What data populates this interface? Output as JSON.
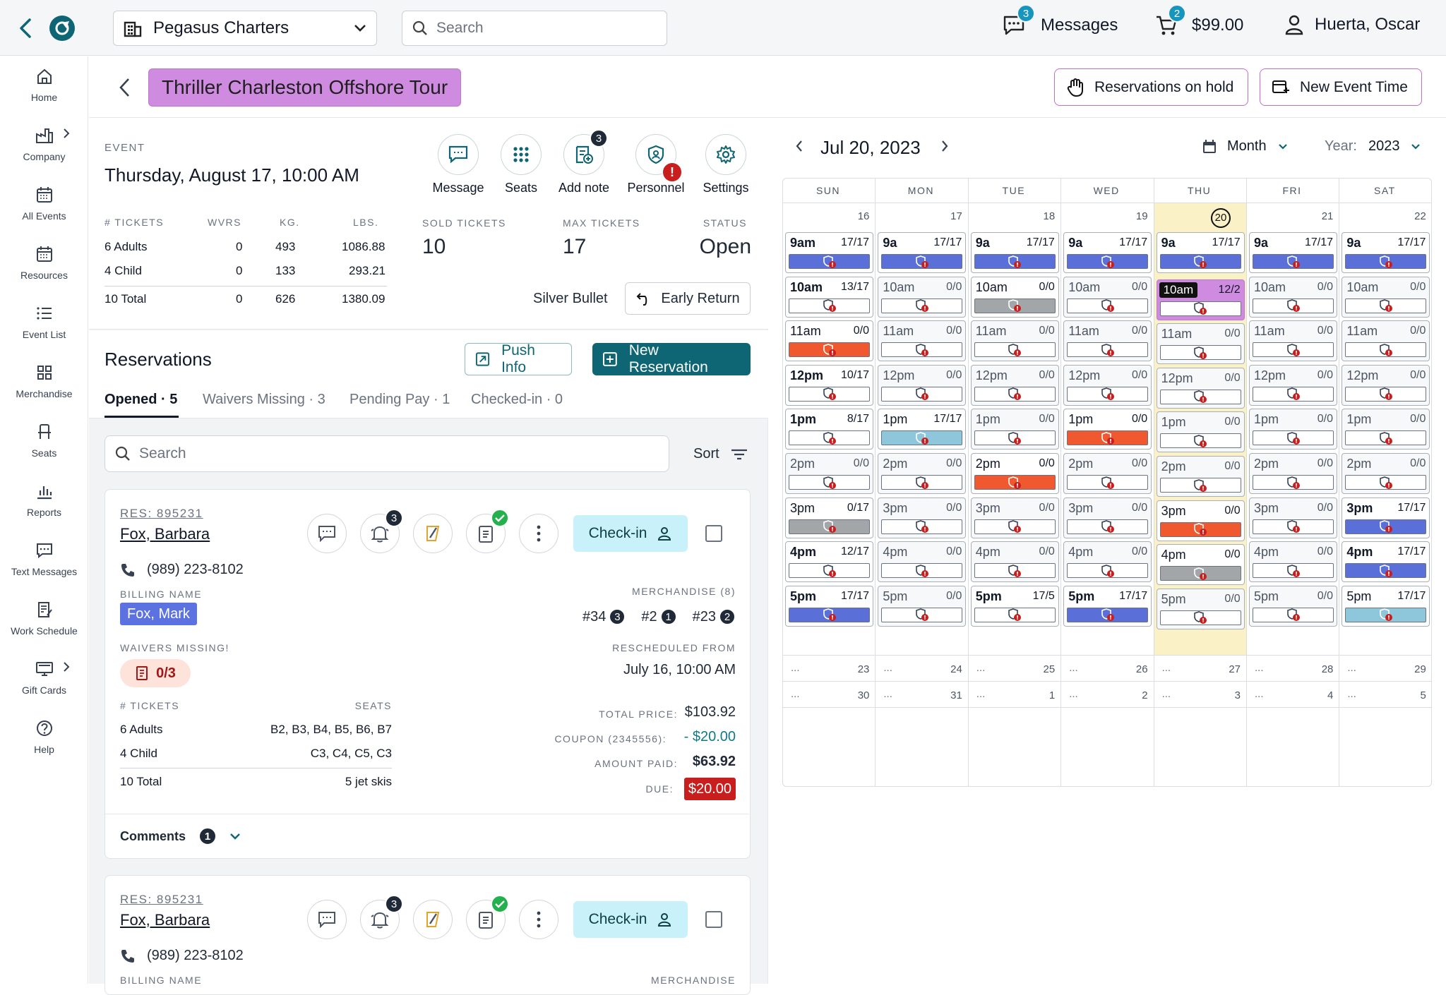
{
  "topbar": {
    "company": "Pegasus Charters",
    "search_placeholder": "Search",
    "messages_label": "Messages",
    "messages_count": "3",
    "cart_count": "2",
    "cart_total": "$99.00",
    "user": "Huerta, Oscar"
  },
  "nav": [
    "Home",
    "Company",
    "All Events",
    "Resources",
    "Event List",
    "Merchandise",
    "Seats",
    "Reports",
    "Text Messages",
    "Work Schedule",
    "Gift Cards",
    "Help"
  ],
  "header": {
    "title": "Thriller Charleston Offshore Tour",
    "on_hold": "Reservations on hold",
    "new_event_time": "New Event Time"
  },
  "event": {
    "caption": "EVENT",
    "datetime": "Thursday, August 17, 10:00 AM",
    "actions": [
      {
        "label": "Message"
      },
      {
        "label": "Seats"
      },
      {
        "label": "Add note",
        "badge": "3"
      },
      {
        "label": "Personnel",
        "badge": "!"
      },
      {
        "label": "Settings"
      }
    ],
    "tickets_head": [
      "# TICKETS",
      "WVRS",
      "KG.",
      "LBS."
    ],
    "tickets_rows": [
      [
        "6 Adults",
        "0",
        "493",
        "1086.88"
      ],
      [
        "4 Child",
        "0",
        "133",
        "293.21"
      ],
      [
        "10 Total",
        "0",
        "626",
        "1380.09"
      ]
    ],
    "sold_label": "SOLD TICKETS",
    "sold": "10",
    "max_label": "MAX TICKETS",
    "max": "17",
    "status_label": "STATUS",
    "status": "Open",
    "boat": "Silver Bullet",
    "early_return": "Early Return"
  },
  "reservations": {
    "title": "Reservations",
    "push_info": "Push Info",
    "new_reservation": "New Reservation",
    "tabs": [
      "Opened · 5",
      "Waivers Missing · 3",
      "Pending Pay · 1",
      "Checked-in · 0"
    ],
    "search_placeholder": "Search",
    "sort": "Sort"
  },
  "card": {
    "res_no": "RES: 895231",
    "name": "Fox, Barbara",
    "phone": "(989) 223-8102",
    "bell_count": "3",
    "checkin": "Check-in",
    "billing_label": "BILLING NAME",
    "billing_name": "Fox, Mark",
    "merch_label": "MERCHANDISE (8)",
    "merch": [
      {
        "item": "#34",
        "qty": "3"
      },
      {
        "item": "#2",
        "qty": "1"
      },
      {
        "item": "#23",
        "qty": "2"
      }
    ],
    "waivers_label": "WAIVERS MISSING!",
    "waivers": "0/3",
    "resched_label": "RESCHEDULED FROM",
    "resched": "July 16, 10:00 AM",
    "tickets_label": "# TICKETS",
    "seats_label": "SEATS",
    "rows": [
      [
        "6 Adults",
        "B2, B3, B4, B5, B6, B7"
      ],
      [
        "4 Child",
        "C3, C4, C5, C3"
      ],
      [
        "10 Total",
        "5 jet skis"
      ]
    ],
    "total_label": "TOTAL PRICE:",
    "total": "$103.92",
    "coupon_label": "COUPON (2345556):",
    "coupon": "- $20.00",
    "paid_label": "AMOUNT PAID:",
    "paid": "$63.92",
    "due_label": "DUE:",
    "due": "$20.00",
    "comments_label": "Comments",
    "comments_count": "1"
  },
  "card2": {
    "res_no": "RES: 895231",
    "name": "Fox, Barbara",
    "phone": "(989) 223-8102",
    "bell_count": "3",
    "checkin": "Check-in",
    "billing_label": "BILLING NAME",
    "merch_label": "MERCHANDISE"
  },
  "calendar": {
    "date": "Jul 20, 2023",
    "view": "Month",
    "year_label": "Year:",
    "year": "2023",
    "days": [
      "SUN",
      "MON",
      "TUE",
      "WED",
      "THU",
      "FRI",
      "SAT"
    ],
    "week1": [
      "16",
      "17",
      "18",
      "19",
      "20",
      "21",
      "22"
    ],
    "week2": [
      "23",
      "24",
      "25",
      "26",
      "27",
      "28",
      "29"
    ],
    "week3": [
      "30",
      "31",
      "1",
      "2",
      "3",
      "4",
      "5"
    ],
    "ellipsis": "...",
    "times": [
      "9am",
      "10am",
      "11am",
      "12pm",
      "1pm",
      "2pm",
      "3pm",
      "4pm",
      "5pm"
    ],
    "slots": [
      [
        [
          "9am",
          "17/17",
          "b"
        ],
        [
          "10am",
          "13/17",
          "w"
        ],
        [
          "11am",
          "0/0",
          "o"
        ],
        [
          "12pm",
          "10/17",
          "w"
        ],
        [
          "1pm",
          "8/17",
          "w"
        ],
        [
          "2pm",
          "0/0",
          "w"
        ],
        [
          "3pm",
          "0/17",
          "g"
        ],
        [
          "4pm",
          "12/17",
          "w"
        ],
        [
          "5pm",
          "17/17",
          "b"
        ]
      ],
      [
        [
          "9a",
          "17/17",
          "b"
        ],
        [
          "10am",
          "0/0",
          "w"
        ],
        [
          "11am",
          "0/0",
          "w"
        ],
        [
          "12pm",
          "0/0",
          "w"
        ],
        [
          "1pm",
          "17/17",
          "l"
        ],
        [
          "2pm",
          "0/0",
          "w"
        ],
        [
          "3pm",
          "0/0",
          "w"
        ],
        [
          "4pm",
          "0/0",
          "w"
        ],
        [
          "5pm",
          "0/0",
          "w"
        ]
      ],
      [
        [
          "9a",
          "17/17",
          "b"
        ],
        [
          "10am",
          "0/0",
          "g"
        ],
        [
          "11am",
          "0/0",
          "w"
        ],
        [
          "12pm",
          "0/0",
          "w"
        ],
        [
          "1pm",
          "0/0",
          "w"
        ],
        [
          "2pm",
          "0/0",
          "o"
        ],
        [
          "3pm",
          "0/0",
          "w"
        ],
        [
          "4pm",
          "0/0",
          "w"
        ],
        [
          "5pm",
          "17/5",
          "w"
        ]
      ],
      [
        [
          "9a",
          "17/17",
          "b"
        ],
        [
          "10am",
          "0/0",
          "w"
        ],
        [
          "11am",
          "0/0",
          "w"
        ],
        [
          "12pm",
          "0/0",
          "w"
        ],
        [
          "1pm",
          "0/0",
          "o"
        ],
        [
          "2pm",
          "0/0",
          "w"
        ],
        [
          "3pm",
          "0/0",
          "w"
        ],
        [
          "4pm",
          "0/0",
          "w"
        ],
        [
          "5pm",
          "17/17",
          "b"
        ]
      ],
      [
        [
          "9a",
          "17/17",
          "b"
        ],
        [
          "10am",
          "12/2",
          "p"
        ],
        [
          "11am",
          "0/0",
          "w"
        ],
        [
          "12pm",
          "0/0",
          "w"
        ],
        [
          "1pm",
          "0/0",
          "w"
        ],
        [
          "2pm",
          "0/0",
          "w"
        ],
        [
          "3pm",
          "0/0",
          "o"
        ],
        [
          "4pm",
          "0/0",
          "g"
        ],
        [
          "5pm",
          "0/0",
          "w"
        ]
      ],
      [
        [
          "9a",
          "17/17",
          "b"
        ],
        [
          "10am",
          "0/0",
          "w"
        ],
        [
          "11am",
          "0/0",
          "w"
        ],
        [
          "12pm",
          "0/0",
          "w"
        ],
        [
          "1pm",
          "0/0",
          "w"
        ],
        [
          "2pm",
          "0/0",
          "w"
        ],
        [
          "3pm",
          "0/0",
          "w"
        ],
        [
          "4pm",
          "0/0",
          "w"
        ],
        [
          "5pm",
          "0/0",
          "w"
        ]
      ],
      [
        [
          "9a",
          "17/17",
          "b"
        ],
        [
          "10am",
          "0/0",
          "w"
        ],
        [
          "11am",
          "0/0",
          "w"
        ],
        [
          "12pm",
          "0/0",
          "w"
        ],
        [
          "1pm",
          "0/0",
          "w"
        ],
        [
          "2pm",
          "0/0",
          "w"
        ],
        [
          "3pm",
          "17/17",
          "b"
        ],
        [
          "4pm",
          "17/17",
          "b"
        ],
        [
          "5pm",
          "17/17",
          "l"
        ]
      ]
    ],
    "colors": {
      "b": "#5b6fd8",
      "w": "#ffffff",
      "o": "#f0582f",
      "g": "#a3a6a9",
      "l": "#8ec6dc",
      "p": "#ffffff",
      "today": "#fbf1c7"
    }
  }
}
